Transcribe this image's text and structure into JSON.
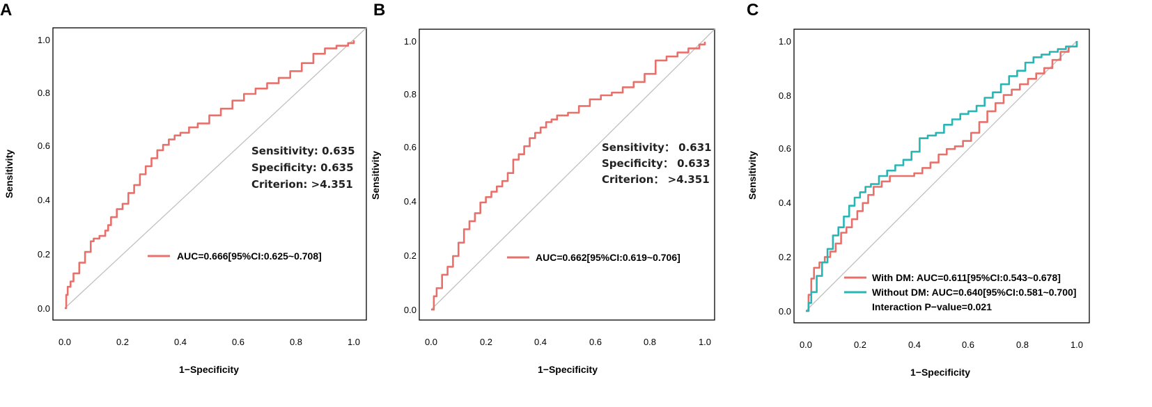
{
  "colors": {
    "red": "#e8706b",
    "teal": "#2ab5b5",
    "diag": "#c0c0c0"
  },
  "chart_data": [
    {
      "type": "line",
      "panel_label": "A",
      "xlabel": "1−Specificity",
      "ylabel": "Sensitivity",
      "xlim": [
        0,
        1
      ],
      "ylim": [
        0,
        1
      ],
      "xticks": [
        "0.0",
        "0.2",
        "0.4",
        "0.6",
        "0.8",
        "1.0"
      ],
      "yticks": [
        "0.0",
        "0.2",
        "0.4",
        "0.6",
        "0.8",
        "1.0"
      ],
      "legend_position": "bottom-right",
      "annotations": [
        "Sensitivity: 0.635",
        "Specificity: 0.635",
        "Criterion: >4.351"
      ],
      "series": [
        {
          "name": "AUC=0.666[95%CI:0.625~0.708]",
          "color": "#e8706b",
          "x": [
            0,
            0.005,
            0.01,
            0.02,
            0.03,
            0.05,
            0.07,
            0.09,
            0.1,
            0.12,
            0.14,
            0.15,
            0.16,
            0.18,
            0.2,
            0.22,
            0.24,
            0.26,
            0.28,
            0.3,
            0.32,
            0.34,
            0.36,
            0.38,
            0.4,
            0.43,
            0.46,
            0.5,
            0.54,
            0.58,
            0.62,
            0.66,
            0.7,
            0.74,
            0.78,
            0.82,
            0.86,
            0.9,
            0.94,
            0.98,
            1.0
          ],
          "y": [
            0,
            0.05,
            0.08,
            0.1,
            0.13,
            0.17,
            0.21,
            0.25,
            0.26,
            0.27,
            0.29,
            0.31,
            0.34,
            0.37,
            0.39,
            0.43,
            0.46,
            0.5,
            0.53,
            0.56,
            0.59,
            0.61,
            0.63,
            0.645,
            0.655,
            0.675,
            0.69,
            0.72,
            0.745,
            0.775,
            0.8,
            0.82,
            0.84,
            0.86,
            0.885,
            0.915,
            0.95,
            0.97,
            0.98,
            0.99,
            1.0
          ]
        }
      ]
    },
    {
      "type": "line",
      "panel_label": "B",
      "xlabel": "1−Specificity",
      "ylabel": "Sensitivity",
      "xlim": [
        0,
        1
      ],
      "ylim": [
        0,
        1
      ],
      "xticks": [
        "0.0",
        "0.2",
        "0.4",
        "0.6",
        "0.8",
        "1.0"
      ],
      "yticks": [
        "0.0",
        "0.2",
        "0.4",
        "0.6",
        "0.8",
        "1.0"
      ],
      "legend_position": "bottom-right",
      "annotations": [
        "Sensitivity： 0.631",
        "Specificity： 0.633",
        "Criterion： >4.351"
      ],
      "series": [
        {
          "name": "AUC=0.662[95%CI:0.619~0.706]",
          "color": "#e8706b",
          "x": [
            0,
            0.01,
            0.02,
            0.04,
            0.06,
            0.08,
            0.1,
            0.12,
            0.14,
            0.16,
            0.18,
            0.2,
            0.22,
            0.24,
            0.26,
            0.28,
            0.3,
            0.32,
            0.34,
            0.36,
            0.38,
            0.4,
            0.42,
            0.44,
            0.46,
            0.5,
            0.54,
            0.58,
            0.62,
            0.66,
            0.7,
            0.74,
            0.78,
            0.82,
            0.86,
            0.9,
            0.94,
            0.98,
            1.0
          ],
          "y": [
            0,
            0.05,
            0.08,
            0.13,
            0.16,
            0.2,
            0.25,
            0.3,
            0.33,
            0.36,
            0.4,
            0.42,
            0.44,
            0.46,
            0.48,
            0.51,
            0.56,
            0.58,
            0.61,
            0.64,
            0.66,
            0.68,
            0.7,
            0.71,
            0.725,
            0.735,
            0.76,
            0.785,
            0.8,
            0.81,
            0.83,
            0.85,
            0.88,
            0.93,
            0.945,
            0.96,
            0.975,
            0.99,
            1.0
          ]
        }
      ]
    },
    {
      "type": "line",
      "panel_label": "C",
      "xlabel": "1−Specificity",
      "ylabel": "Sensitivity",
      "xlim": [
        0,
        1
      ],
      "ylim": [
        0,
        1
      ],
      "xticks": [
        "0.0",
        "0.2",
        "0.4",
        "0.6",
        "0.8",
        "1.0"
      ],
      "yticks": [
        "0.0",
        "0.2",
        "0.4",
        "0.6",
        "0.8",
        "1.0"
      ],
      "legend_position": "bottom-right",
      "legend_note": "Interaction P−value=0.021",
      "series": [
        {
          "name": "With DM: AUC=0.611[95%CI:0.543~0.678]",
          "color": "#e8706b",
          "x": [
            0,
            0.01,
            0.02,
            0.03,
            0.05,
            0.07,
            0.09,
            0.11,
            0.13,
            0.15,
            0.17,
            0.19,
            0.21,
            0.23,
            0.25,
            0.28,
            0.31,
            0.34,
            0.37,
            0.4,
            0.43,
            0.46,
            0.49,
            0.52,
            0.55,
            0.58,
            0.61,
            0.64,
            0.67,
            0.7,
            0.73,
            0.76,
            0.79,
            0.82,
            0.85,
            0.88,
            0.91,
            0.94,
            0.97,
            1.0
          ],
          "y": [
            0,
            0.06,
            0.12,
            0.16,
            0.18,
            0.2,
            0.22,
            0.25,
            0.29,
            0.31,
            0.34,
            0.37,
            0.4,
            0.43,
            0.46,
            0.48,
            0.5,
            0.5,
            0.5,
            0.51,
            0.53,
            0.55,
            0.58,
            0.6,
            0.61,
            0.63,
            0.66,
            0.7,
            0.74,
            0.77,
            0.8,
            0.82,
            0.84,
            0.86,
            0.88,
            0.9,
            0.93,
            0.96,
            0.98,
            1.0
          ]
        },
        {
          "name": "Without DM: AUC=0.640[95%CI:0.581~0.700]",
          "color": "#2ab5b5",
          "x": [
            0,
            0.01,
            0.02,
            0.04,
            0.06,
            0.08,
            0.1,
            0.12,
            0.14,
            0.16,
            0.18,
            0.2,
            0.22,
            0.24,
            0.27,
            0.3,
            0.33,
            0.36,
            0.39,
            0.42,
            0.45,
            0.48,
            0.51,
            0.54,
            0.57,
            0.6,
            0.63,
            0.66,
            0.69,
            0.72,
            0.75,
            0.78,
            0.81,
            0.84,
            0.87,
            0.9,
            0.93,
            0.96,
            1.0
          ],
          "y": [
            0,
            0.03,
            0.07,
            0.13,
            0.18,
            0.23,
            0.28,
            0.31,
            0.35,
            0.39,
            0.42,
            0.44,
            0.46,
            0.47,
            0.5,
            0.52,
            0.54,
            0.56,
            0.59,
            0.64,
            0.65,
            0.66,
            0.69,
            0.71,
            0.73,
            0.74,
            0.76,
            0.79,
            0.81,
            0.84,
            0.87,
            0.89,
            0.92,
            0.94,
            0.95,
            0.96,
            0.97,
            0.98,
            1.0
          ]
        }
      ]
    }
  ]
}
